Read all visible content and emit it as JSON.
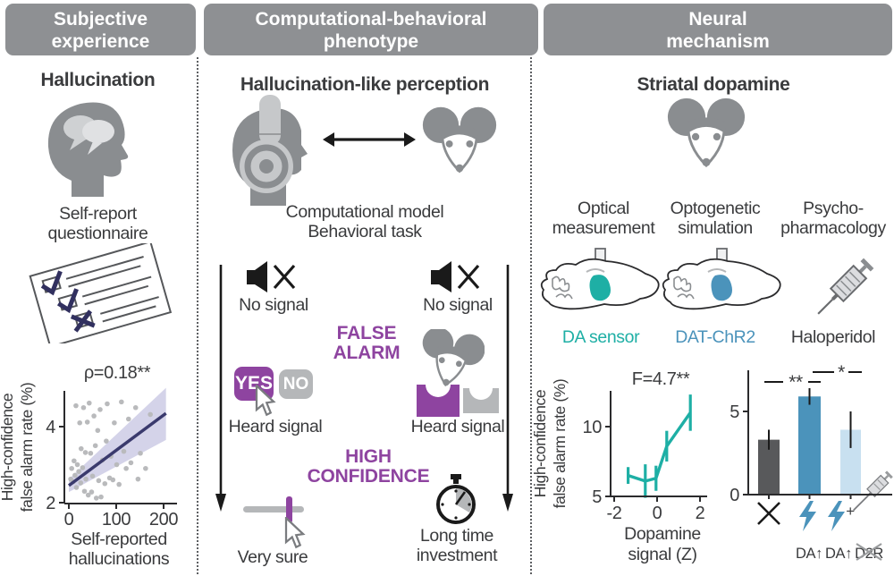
{
  "colors": {
    "header_bg": "#8e9093",
    "purple": "#8e44a0",
    "navy": "#3a3a6d",
    "teal": "#1eafa5",
    "steel_blue": "#4b93bb",
    "light_blue": "#c8e0f0",
    "dark_gray_bar": "#58595b",
    "icon_gray": "#8a8d90",
    "light_gray": "#b5b7b9",
    "text": "#3a3b3d"
  },
  "headers": {
    "left": {
      "line1": "Subjective",
      "line2": "experience"
    },
    "middle": {
      "line1": "Computational-behavioral",
      "line2": "phenotype"
    },
    "right": {
      "line1": "Neural",
      "line2": "mechanism"
    }
  },
  "left": {
    "title": "Hallucination",
    "caption1": "Self-report",
    "caption2": "questionnaire"
  },
  "middle": {
    "title": "Hallucination-like perception",
    "caption1": "Computational model",
    "caption2": "Behavioral task",
    "no_signal": "No signal",
    "false_alarm1": "FALSE",
    "false_alarm2": "ALARM",
    "yes": "YES",
    "no": "NO",
    "heard_signal": "Heard signal",
    "high1": "HIGH",
    "high2": "CONFIDENCE",
    "very_sure": "Very sure",
    "long1": "Long time",
    "long2": "investment"
  },
  "right": {
    "title": "Striatal dopamine",
    "methods": [
      {
        "line1": "Optical",
        "line2": "measurement",
        "label": "DA sensor",
        "color_key": "teal"
      },
      {
        "line1": "Optogenetic",
        "line2": "simulation",
        "label": "DAT-ChR2",
        "color_key": "steel_blue"
      },
      {
        "line1": "Psycho-",
        "line2": "pharmacology",
        "label": "Haloperidol",
        "color_key": "text"
      }
    ]
  },
  "chart_data": [
    {
      "type": "scatter",
      "title": "ρ=0.18**",
      "xlabel_lines": [
        "Self-reported",
        "hallucinations"
      ],
      "ylabel_lines": [
        "High-confidence",
        "false alarm rate (%)"
      ],
      "xlim": [
        0,
        215
      ],
      "ylim": [
        2,
        5
      ],
      "xticks": [
        0,
        100,
        200
      ],
      "yticks": [
        2,
        4
      ],
      "point_color": "#b9babc",
      "line_color": "#3a3a6d",
      "band_color": "#c6c4e2",
      "fit_line": {
        "x": [
          0,
          205
        ],
        "y": [
          2.45,
          4.35
        ]
      },
      "band": {
        "x": [
          0,
          205
        ],
        "upper": [
          2.62,
          5.02
        ],
        "lower": [
          2.28,
          3.65
        ]
      },
      "points": [
        [
          4,
          2.62
        ],
        [
          6,
          2.9
        ],
        [
          9,
          2.55
        ],
        [
          11,
          3.1
        ],
        [
          13,
          2.72
        ],
        [
          15,
          4.55
        ],
        [
          16,
          2.4
        ],
        [
          18,
          3.0
        ],
        [
          21,
          2.82
        ],
        [
          23,
          4.1
        ],
        [
          25,
          2.52
        ],
        [
          26,
          3.42
        ],
        [
          29,
          2.92
        ],
        [
          31,
          4.5
        ],
        [
          33,
          2.3
        ],
        [
          35,
          3.32
        ],
        [
          36,
          2.62
        ],
        [
          39,
          4.12
        ],
        [
          41,
          2.2
        ],
        [
          43,
          4.62
        ],
        [
          46,
          3.3
        ],
        [
          48,
          2.28
        ],
        [
          50,
          2.7
        ],
        [
          53,
          4.28
        ],
        [
          56,
          3.5
        ],
        [
          58,
          2.12
        ],
        [
          61,
          3.9
        ],
        [
          63,
          2.58
        ],
        [
          66,
          4.45
        ],
        [
          68,
          2.15
        ],
        [
          71,
          3.12
        ],
        [
          76,
          2.5
        ],
        [
          79,
          3.62
        ],
        [
          81,
          4.6
        ],
        [
          86,
          2.65
        ],
        [
          89,
          3.22
        ],
        [
          93,
          2.6
        ],
        [
          96,
          4.1
        ],
        [
          101,
          3.0
        ],
        [
          106,
          2.48
        ],
        [
          111,
          4.65
        ],
        [
          116,
          3.35
        ],
        [
          121,
          2.9
        ],
        [
          126,
          4.2
        ],
        [
          131,
          3.05
        ],
        [
          141,
          4.5
        ],
        [
          146,
          2.62
        ],
        [
          151,
          3.3
        ],
        [
          162,
          2.9
        ],
        [
          172,
          4.32
        ]
      ]
    },
    {
      "type": "line",
      "title": "F=4.7**",
      "xlabel_lines": [
        "Dopamine",
        "signal (Z)"
      ],
      "ylabel_lines": [
        "High-confidence",
        "false alarm rate (%)"
      ],
      "xlim": [
        -2.3,
        2.3
      ],
      "ylim": [
        5,
        13
      ],
      "xticks": [
        -2,
        0,
        2
      ],
      "yticks": [
        5,
        10
      ],
      "color": "#1eafa5",
      "x": [
        -1.35,
        -0.55,
        -0.05,
        0.45,
        1.55
      ],
      "y": [
        6.5,
        6.1,
        6.3,
        8.6,
        11.0
      ],
      "yerr": [
        0.6,
        1.2,
        0.9,
        1.1,
        1.3
      ]
    },
    {
      "type": "bar",
      "categories": [
        "no stimulation",
        "DA stimulation",
        "DA stimulation + D2R blockade"
      ],
      "values": [
        3.3,
        5.9,
        3.9
      ],
      "errors": [
        0.6,
        0.5,
        1.1
      ],
      "bar_colors": [
        "#58595b",
        "#4b93bb",
        "#c8e0f0"
      ],
      "yticks": [
        0,
        5
      ],
      "ylim": [
        0,
        7.6
      ],
      "significance": [
        {
          "between": [
            0,
            1
          ],
          "label": "**"
        },
        {
          "between": [
            1,
            2
          ],
          "label": "*"
        }
      ],
      "da_labels": [
        "DA↑",
        "DA↑"
      ],
      "d2r_label": "D2R",
      "plus_sign": "+"
    }
  ]
}
